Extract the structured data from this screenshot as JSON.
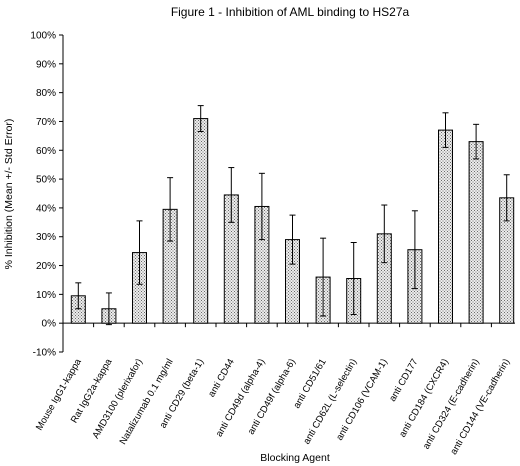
{
  "chart_data": {
    "type": "bar",
    "title": "Figure 1 - Inhibition of AML binding to HS27a",
    "xlabel": "Blocking Agent",
    "ylabel": "% Inhibition (Mean +/- Std Error)",
    "ylim": [
      -10,
      100
    ],
    "yticks": [
      "-10%",
      "0%",
      "10%",
      "20%",
      "30%",
      "40%",
      "50%",
      "60%",
      "70%",
      "80%",
      "90%",
      "100%"
    ],
    "ytick_values": [
      -10,
      0,
      10,
      20,
      30,
      40,
      50,
      60,
      70,
      80,
      90,
      100
    ],
    "grid": false,
    "legend": "none",
    "bar_fill": "#d9d9d9",
    "bar_pattern": "dotted",
    "categories": [
      "Mouse IgG1-kappa",
      "Rat IgG2a-kappa",
      "AMD3100 (plerixafor)",
      "Natalizumab 0.1 mg/ml",
      "anti CD29 (beta-1)",
      "anti CD44",
      "anti CD49d (alpha-4)",
      "anti CD49f (alpha-6)",
      "anti CD51/61",
      "anti CD62L (L-selectin)",
      "anti CD106 (VCAM-1)",
      "anti CD177",
      "anti CD184 (CXCR4)",
      "anti CD324 (E-cadherin)",
      "anti CD144 (VE-cadherin)"
    ],
    "values": [
      9.5,
      5,
      24.5,
      39.5,
      71,
      44.5,
      40.5,
      29,
      16,
      15.5,
      31,
      25.5,
      67,
      63,
      43.5
    ],
    "errors": [
      4.5,
      5.5,
      11,
      11,
      4.5,
      9.5,
      11.5,
      8.5,
      13.5,
      12.5,
      10,
      13.5,
      6,
      6,
      8
    ]
  }
}
